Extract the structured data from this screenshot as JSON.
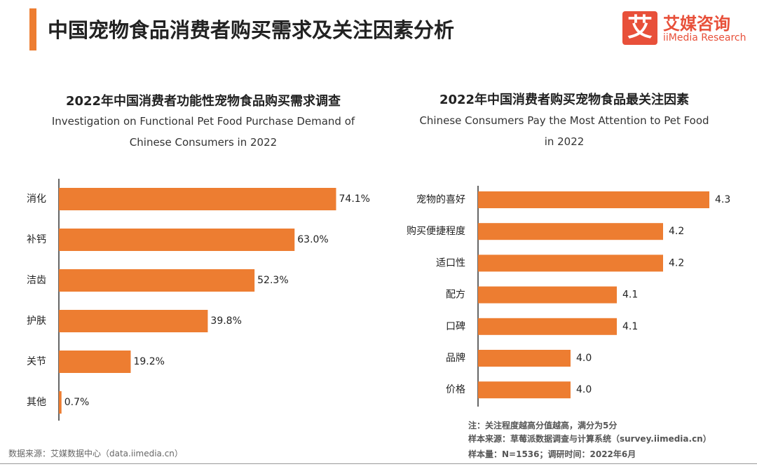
{
  "header": {
    "title": "中国宠物食品消费者购买需求及关注因素分析",
    "logo_mark": "艾",
    "logo_cn": "艾媒咨询",
    "logo_en": "iiMedia Research"
  },
  "chart_data": [
    {
      "type": "bar",
      "orientation": "horizontal",
      "title": "2022年中国消费者功能性宠物食品购买需求调查",
      "subtitle": "Investigation on Functional Pet Food Purchase Demand of Chinese Consumers in 2022",
      "categories": [
        "消化",
        "补钙",
        "洁齿",
        "护肤",
        "关节",
        "其他"
      ],
      "values": [
        74.1,
        63.0,
        52.3,
        39.8,
        19.2,
        0.7
      ],
      "value_labels": [
        "74.1%",
        "63.0%",
        "52.3%",
        "39.8%",
        "19.2%",
        "0.7%"
      ],
      "color": "#ed7d31",
      "xlim": [
        0,
        80
      ],
      "source": "数据来源：艾媒数据中心（data.iimedia.cn）"
    },
    {
      "type": "bar",
      "orientation": "horizontal",
      "title": "2022年中国消费者购买宠物食品最关注因素",
      "subtitle": "Chinese Consumers Pay the Most Attention to Pet Food in 2022",
      "categories": [
        "宠物的喜好",
        "购买便捷程度",
        "适口性",
        "配方",
        "口碑",
        "品牌",
        "价格"
      ],
      "values": [
        4.3,
        4.2,
        4.2,
        4.1,
        4.1,
        4.0,
        4.0
      ],
      "value_labels": [
        "4.3",
        "4.2",
        "4.2",
        "4.1",
        "4.1",
        "4.0",
        "4.0"
      ],
      "color": "#ed7d31",
      "xlim": [
        3.8,
        4.3
      ],
      "notes": [
        "注：关注程度越高分值越高，满分为5分",
        "样本来源：草莓派数据调查与计算系统（survey.iimedia.cn）",
        "样本量：N=1536；调研时间：2022年6月"
      ]
    }
  ]
}
